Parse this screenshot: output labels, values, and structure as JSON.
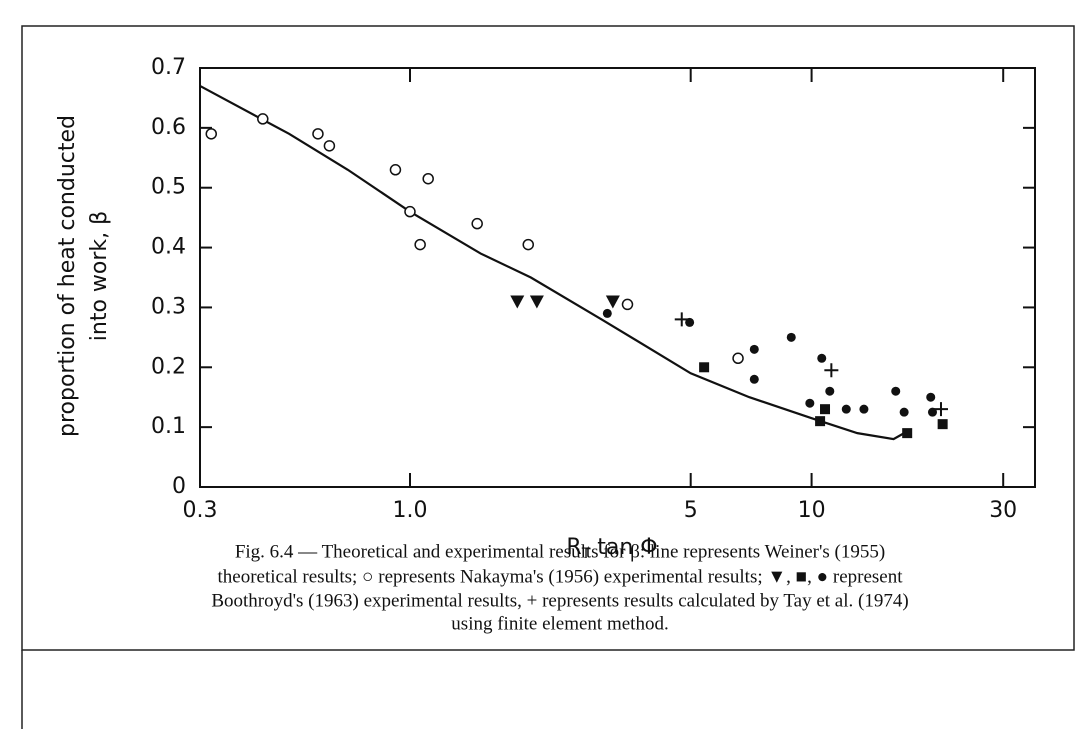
{
  "chart_data": {
    "type": "scatter",
    "y_label": [
      "proportion of heat conducted",
      "into work, β"
    ],
    "x_label": [
      "R",
      "T",
      " tan Φ"
    ],
    "caption": [
      "Fig. 6.4 — Theoretical and experimental results for β: line represents Weiner's (1955)",
      "theoretical results; ○ represents Nakayma's (1956) experimental results; ▼, ■, ● represent",
      "Boothroyd's (1963) experimental results, + represents results calculated by Tay et al. (1974)",
      "using finite element method."
    ],
    "log_x": true,
    "xlim": [
      0.3,
      36
    ],
    "xticks": [
      0.3,
      {
        "value": 1,
        "label": "1.0"
      },
      5,
      10,
      30
    ],
    "ylim": [
      0,
      0.7
    ],
    "yticks": [
      0,
      0.1,
      0.2,
      0.3,
      0.4,
      0.5,
      0.6,
      0.7
    ],
    "series": [
      {
        "marker": "line",
        "color": "#111",
        "x": [
          0.3,
          0.5,
          0.7,
          1.0,
          1.5,
          2.0,
          3.0,
          5.0,
          7.0,
          10,
          13,
          16,
          17
        ],
        "values": [
          0.67,
          0.59,
          0.53,
          0.46,
          0.39,
          0.35,
          0.28,
          0.19,
          0.15,
          0.115,
          0.09,
          0.08,
          0.09
        ]
      },
      {
        "marker": "open-circle",
        "color": "#111",
        "x": [
          0.32,
          0.43,
          0.59,
          0.63,
          0.92,
          1.0,
          1.06,
          1.11,
          1.47,
          1.97,
          3.48,
          6.56
        ],
        "values": [
          0.59,
          0.615,
          0.59,
          0.57,
          0.53,
          0.46,
          0.405,
          0.515,
          0.44,
          0.405,
          0.305,
          0.215
        ]
      },
      {
        "marker": "triangle",
        "color": "#111",
        "x": [
          1.85,
          2.07,
          3.2
        ],
        "values": [
          0.31,
          0.31,
          0.31
        ]
      },
      {
        "marker": "square",
        "color": "#111",
        "x": [
          5.4,
          10.5,
          10.8,
          17.3,
          21.2
        ],
        "values": [
          0.2,
          0.11,
          0.13,
          0.09,
          0.105
        ]
      },
      {
        "marker": "circle",
        "color": "#111",
        "x": [
          3.1,
          4.97,
          7.2,
          7.2,
          8.9,
          9.9,
          10.6,
          11.1,
          12.2,
          13.5,
          16.2,
          17,
          19.8,
          20
        ],
        "values": [
          0.29,
          0.275,
          0.23,
          0.18,
          0.25,
          0.14,
          0.215,
          0.16,
          0.13,
          0.13,
          0.16,
          0.125,
          0.15,
          0.125
        ]
      },
      {
        "marker": "plus",
        "color": "#111",
        "x": [
          4.75,
          11.2,
          21
        ],
        "values": [
          0.28,
          0.195,
          0.13
        ]
      }
    ]
  }
}
